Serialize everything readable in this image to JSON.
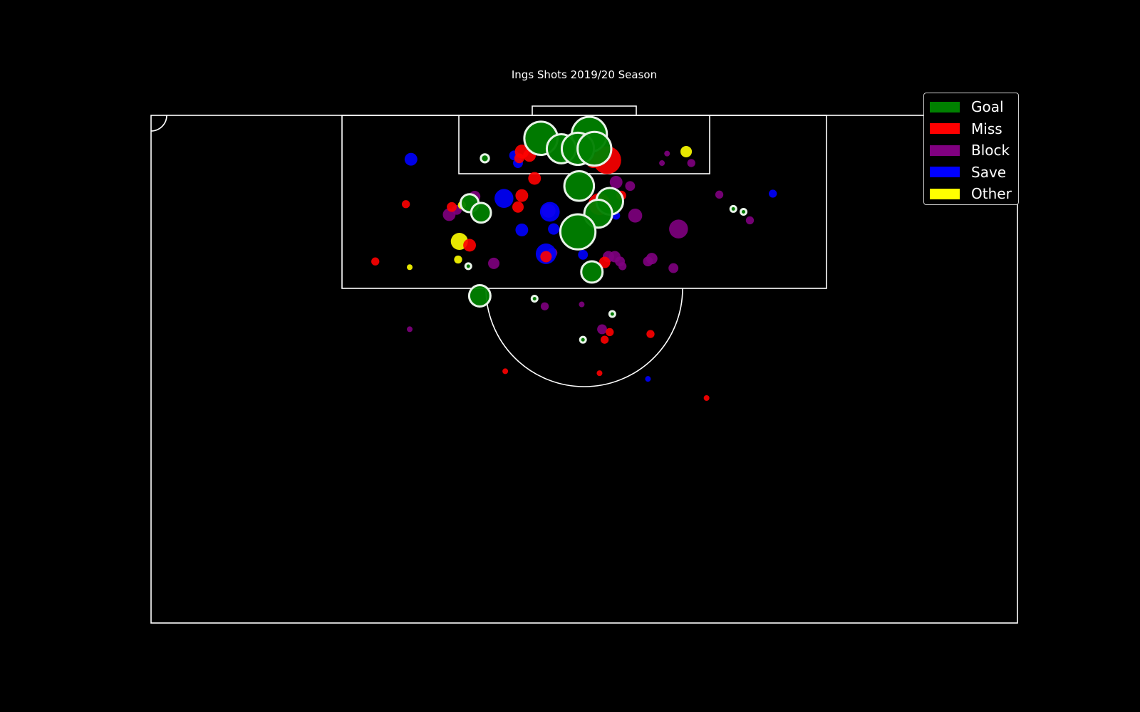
{
  "chart_data": {
    "type": "scatter",
    "title": "Ings Shots 2019/20 Season",
    "pitch": "half-pitch, vertical, goal at top",
    "size_encoding": "marker size proportional to xG",
    "legend_placement": "top-right",
    "outcome_colors": {
      "Goal": "#008000",
      "Miss": "#ff0000",
      "Block": "#800080",
      "Save": "#0000ff",
      "Other": "#ffff00"
    },
    "goal_outline_color": "#e8f3e8",
    "legend": [
      {
        "label": "Goal",
        "color": "#008000"
      },
      {
        "label": "Miss",
        "color": "#ff0000"
      },
      {
        "label": "Block",
        "color": "#800080"
      },
      {
        "label": "Save",
        "color": "#0000ff"
      },
      {
        "label": "Other",
        "color": "#ffff00"
      }
    ],
    "axes": {
      "x_range_m": [
        0,
        68
      ],
      "y_range_m_from_goal_line": [
        0,
        52.5
      ]
    },
    "shots": [
      {
        "x": 34.4,
        "y": 2.0,
        "xg": 0.38,
        "outcome": "Goal"
      },
      {
        "x": 30.6,
        "y": 2.4,
        "xg": 0.34,
        "outcome": "Goal"
      },
      {
        "x": 32.2,
        "y": 3.5,
        "xg": 0.26,
        "outcome": "Goal"
      },
      {
        "x": 33.5,
        "y": 3.5,
        "xg": 0.32,
        "outcome": "Goal"
      },
      {
        "x": 34.8,
        "y": 3.5,
        "xg": 0.35,
        "outcome": "Goal"
      },
      {
        "x": 26.2,
        "y": 4.5,
        "xg": 0.02,
        "outcome": "Goal"
      },
      {
        "x": 33.6,
        "y": 7.4,
        "xg": 0.27,
        "outcome": "Goal"
      },
      {
        "x": 36.0,
        "y": 9.0,
        "xg": 0.22,
        "outcome": "Goal"
      },
      {
        "x": 25.0,
        "y": 9.2,
        "xg": 0.1,
        "outcome": "Goal"
      },
      {
        "x": 25.9,
        "y": 10.2,
        "xg": 0.12,
        "outcome": "Goal"
      },
      {
        "x": 35.1,
        "y": 10.3,
        "xg": 0.24,
        "outcome": "Goal"
      },
      {
        "x": 33.5,
        "y": 12.2,
        "xg": 0.38,
        "outcome": "Goal"
      },
      {
        "x": 45.7,
        "y": 9.8,
        "xg": 0.01,
        "outcome": "Goal"
      },
      {
        "x": 46.5,
        "y": 10.1,
        "xg": 0.01,
        "outcome": "Goal"
      },
      {
        "x": 24.9,
        "y": 15.8,
        "xg": 0.01,
        "outcome": "Goal"
      },
      {
        "x": 34.6,
        "y": 16.4,
        "xg": 0.14,
        "outcome": "Goal"
      },
      {
        "x": 25.8,
        "y": 18.9,
        "xg": 0.14,
        "outcome": "Goal"
      },
      {
        "x": 30.1,
        "y": 19.2,
        "xg": 0.01,
        "outcome": "Goal"
      },
      {
        "x": 36.2,
        "y": 20.8,
        "xg": 0.01,
        "outcome": "Goal"
      },
      {
        "x": 33.9,
        "y": 23.5,
        "xg": 0.01,
        "outcome": "Goal"
      },
      {
        "x": 29.1,
        "y": 3.8,
        "xg": 0.06,
        "outcome": "Miss"
      },
      {
        "x": 29.7,
        "y": 4.2,
        "xg": 0.05,
        "outcome": "Miss"
      },
      {
        "x": 28.9,
        "y": 4.5,
        "xg": 0.03,
        "outcome": "Miss"
      },
      {
        "x": 35.8,
        "y": 4.7,
        "xg": 0.24,
        "outcome": "Miss"
      },
      {
        "x": 34.7,
        "y": 4.8,
        "xg": 0.06,
        "outcome": "Miss"
      },
      {
        "x": 30.1,
        "y": 6.6,
        "xg": 0.05,
        "outcome": "Miss"
      },
      {
        "x": 29.1,
        "y": 8.4,
        "xg": 0.05,
        "outcome": "Miss"
      },
      {
        "x": 36.9,
        "y": 8.4,
        "xg": 0.03,
        "outcome": "Miss"
      },
      {
        "x": 35.2,
        "y": 9.3,
        "xg": 0.15,
        "outcome": "Miss"
      },
      {
        "x": 20.0,
        "y": 9.3,
        "xg": 0.02,
        "outcome": "Miss"
      },
      {
        "x": 28.8,
        "y": 9.6,
        "xg": 0.04,
        "outcome": "Miss"
      },
      {
        "x": 23.6,
        "y": 9.6,
        "xg": 0.03,
        "outcome": "Miss"
      },
      {
        "x": 25.0,
        "y": 13.6,
        "xg": 0.05,
        "outcome": "Miss"
      },
      {
        "x": 17.6,
        "y": 15.3,
        "xg": 0.02,
        "outcome": "Miss"
      },
      {
        "x": 31.0,
        "y": 14.8,
        "xg": 0.04,
        "outcome": "Miss"
      },
      {
        "x": 35.6,
        "y": 15.4,
        "xg": 0.04,
        "outcome": "Miss"
      },
      {
        "x": 36.0,
        "y": 22.7,
        "xg": 0.02,
        "outcome": "Miss"
      },
      {
        "x": 39.2,
        "y": 22.9,
        "xg": 0.02,
        "outcome": "Miss"
      },
      {
        "x": 35.6,
        "y": 23.5,
        "xg": 0.02,
        "outcome": "Miss"
      },
      {
        "x": 27.8,
        "y": 26.8,
        "xg": 0.01,
        "outcome": "Miss"
      },
      {
        "x": 35.2,
        "y": 27.0,
        "xg": 0.01,
        "outcome": "Miss"
      },
      {
        "x": 43.6,
        "y": 29.6,
        "xg": 0.01,
        "outcome": "Miss"
      },
      {
        "x": 40.5,
        "y": 4.0,
        "xg": 0.01,
        "outcome": "Block"
      },
      {
        "x": 40.1,
        "y": 5.0,
        "xg": 0.01,
        "outcome": "Block"
      },
      {
        "x": 42.4,
        "y": 5.0,
        "xg": 0.02,
        "outcome": "Block"
      },
      {
        "x": 36.5,
        "y": 7.0,
        "xg": 0.05,
        "outcome": "Block"
      },
      {
        "x": 37.6,
        "y": 7.4,
        "xg": 0.03,
        "outcome": "Block"
      },
      {
        "x": 25.4,
        "y": 8.5,
        "xg": 0.04,
        "outcome": "Block"
      },
      {
        "x": 44.6,
        "y": 8.3,
        "xg": 0.02,
        "outcome": "Block"
      },
      {
        "x": 24.0,
        "y": 9.9,
        "xg": 0.03,
        "outcome": "Block"
      },
      {
        "x": 23.4,
        "y": 10.4,
        "xg": 0.05,
        "outcome": "Block"
      },
      {
        "x": 31.2,
        "y": 10.0,
        "xg": 0.06,
        "outcome": "Block"
      },
      {
        "x": 38.0,
        "y": 10.5,
        "xg": 0.06,
        "outcome": "Block"
      },
      {
        "x": 47.0,
        "y": 11.0,
        "xg": 0.02,
        "outcome": "Block"
      },
      {
        "x": 41.4,
        "y": 11.9,
        "xg": 0.11,
        "outcome": "Block"
      },
      {
        "x": 31.5,
        "y": 14.4,
        "xg": 0.03,
        "outcome": "Block"
      },
      {
        "x": 35.9,
        "y": 14.8,
        "xg": 0.04,
        "outcome": "Block"
      },
      {
        "x": 36.4,
        "y": 14.8,
        "xg": 0.04,
        "outcome": "Block"
      },
      {
        "x": 36.8,
        "y": 15.3,
        "xg": 0.03,
        "outcome": "Block"
      },
      {
        "x": 37.0,
        "y": 15.8,
        "xg": 0.02,
        "outcome": "Block"
      },
      {
        "x": 39.3,
        "y": 15.0,
        "xg": 0.04,
        "outcome": "Block"
      },
      {
        "x": 39.0,
        "y": 15.3,
        "xg": 0.03,
        "outcome": "Block"
      },
      {
        "x": 41.0,
        "y": 16.0,
        "xg": 0.03,
        "outcome": "Block"
      },
      {
        "x": 26.9,
        "y": 15.5,
        "xg": 0.04,
        "outcome": "Block"
      },
      {
        "x": 30.9,
        "y": 20.0,
        "xg": 0.02,
        "outcome": "Block"
      },
      {
        "x": 33.8,
        "y": 19.8,
        "xg": 0.01,
        "outcome": "Block"
      },
      {
        "x": 35.4,
        "y": 22.4,
        "xg": 0.03,
        "outcome": "Block"
      },
      {
        "x": 20.3,
        "y": 22.4,
        "xg": 0.01,
        "outcome": "Block"
      },
      {
        "x": 20.4,
        "y": 4.6,
        "xg": 0.05,
        "outcome": "Save"
      },
      {
        "x": 28.5,
        "y": 4.2,
        "xg": 0.03,
        "outcome": "Save"
      },
      {
        "x": 28.8,
        "y": 5.0,
        "xg": 0.03,
        "outcome": "Save"
      },
      {
        "x": 48.8,
        "y": 8.2,
        "xg": 0.02,
        "outcome": "Save"
      },
      {
        "x": 27.7,
        "y": 8.7,
        "xg": 0.11,
        "outcome": "Save"
      },
      {
        "x": 31.3,
        "y": 10.1,
        "xg": 0.12,
        "outcome": "Save"
      },
      {
        "x": 36.5,
        "y": 10.5,
        "xg": 0.02,
        "outcome": "Save"
      },
      {
        "x": 29.1,
        "y": 12.0,
        "xg": 0.05,
        "outcome": "Save"
      },
      {
        "x": 31.6,
        "y": 11.9,
        "xg": 0.04,
        "outcome": "Save"
      },
      {
        "x": 31.0,
        "y": 14.5,
        "xg": 0.13,
        "outcome": "Save"
      },
      {
        "x": 33.9,
        "y": 14.6,
        "xg": 0.03,
        "outcome": "Save"
      },
      {
        "x": 39.0,
        "y": 27.6,
        "xg": 0.01,
        "outcome": "Save"
      },
      {
        "x": 42.0,
        "y": 3.8,
        "xg": 0.04,
        "outcome": "Other"
      },
      {
        "x": 24.4,
        "y": 9.4,
        "xg": 0.02,
        "outcome": "Other"
      },
      {
        "x": 24.2,
        "y": 13.2,
        "xg": 0.09,
        "outcome": "Other"
      },
      {
        "x": 24.1,
        "y": 15.1,
        "xg": 0.02,
        "outcome": "Other"
      },
      {
        "x": 20.3,
        "y": 15.9,
        "xg": 0.01,
        "outcome": "Other"
      }
    ]
  }
}
